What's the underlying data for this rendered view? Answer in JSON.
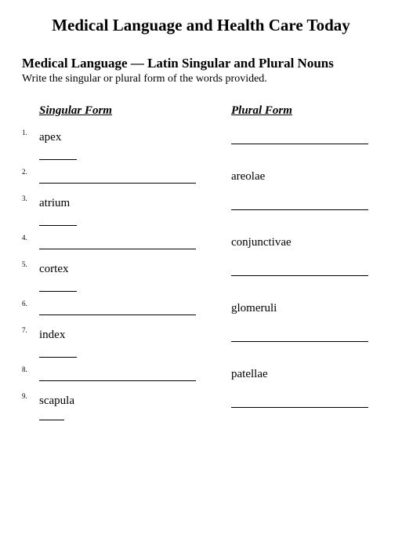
{
  "main_title": "Medical Language and Health Care Today",
  "subtitle": "Medical Language — Latin Singular and Plural Nouns",
  "instruction": "Write the singular or plural form of the words provided.",
  "headers": {
    "singular": "Singular Form",
    "plural": "Plural Form"
  },
  "items": [
    {
      "num": "1.",
      "singular": "apex",
      "plural": "",
      "has_short_blank": true,
      "singular_is_blank": false,
      "plural_is_blank": true
    },
    {
      "num": "2.",
      "singular": "",
      "plural": "areolae",
      "has_short_blank": false,
      "singular_is_blank": true,
      "plural_is_blank": false
    },
    {
      "num": "3.",
      "singular": "atrium",
      "plural": "",
      "has_short_blank": true,
      "singular_is_blank": false,
      "plural_is_blank": true
    },
    {
      "num": "4.",
      "singular": "",
      "plural": "conjunctivae",
      "has_short_blank": false,
      "singular_is_blank": true,
      "plural_is_blank": false
    },
    {
      "num": "5.",
      "singular": "cortex",
      "plural": "",
      "has_short_blank": true,
      "singular_is_blank": false,
      "plural_is_blank": true
    },
    {
      "num": "6.",
      "singular": "",
      "plural": "glomeruli",
      "has_short_blank": false,
      "singular_is_blank": true,
      "plural_is_blank": false
    },
    {
      "num": "7.",
      "singular": "index",
      "plural": "",
      "has_short_blank": true,
      "singular_is_blank": false,
      "plural_is_blank": true
    },
    {
      "num": "8.",
      "singular": "",
      "plural": "patellae",
      "has_short_blank": false,
      "singular_is_blank": true,
      "plural_is_blank": false
    },
    {
      "num": "9.",
      "singular": "scapula",
      "plural": "",
      "has_short_blank": true,
      "singular_is_blank": false,
      "plural_is_blank": true,
      "tiny_blank": true
    }
  ],
  "colors": {
    "text": "#000000",
    "background": "#ffffff"
  }
}
